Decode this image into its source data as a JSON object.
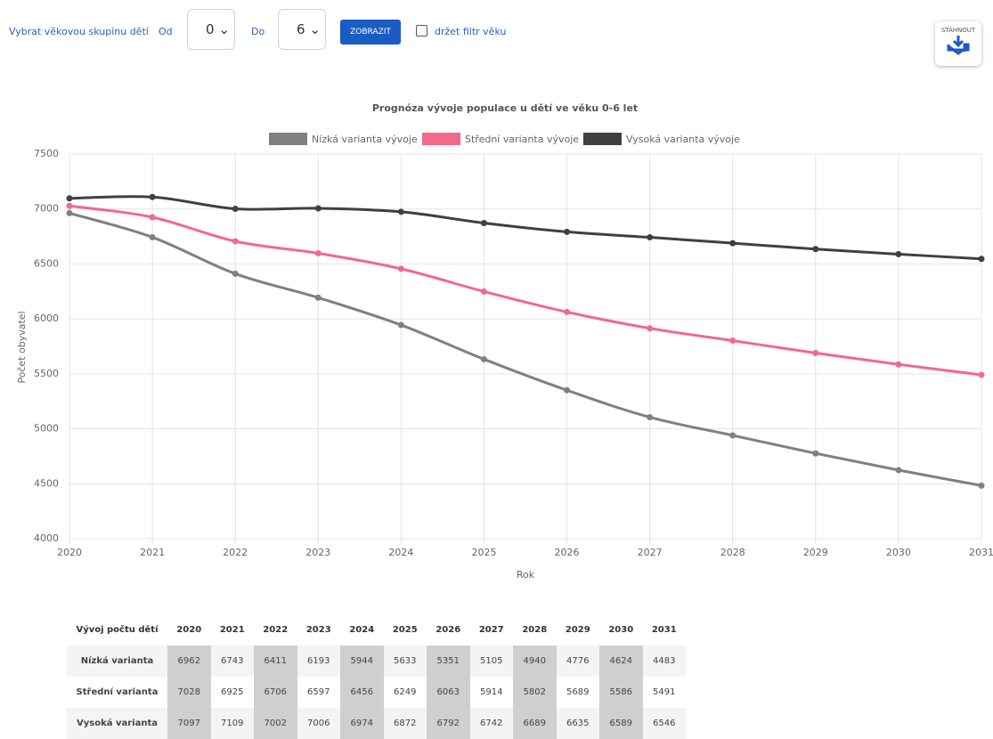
{
  "controls": {
    "age_label": "Vybrat věkovou skupinu dětí",
    "from_label": "Od",
    "from_value": "0",
    "to_label": "Do",
    "to_value": "6",
    "button": "ZOBRAZIT",
    "checkbox_label": "držet filtr věku",
    "download": "STÁHNOUT"
  },
  "chart_data": {
    "type": "line",
    "title": "Prognóza vývoje populace u dětí ve věku 0-6 let",
    "x_label": "Rok",
    "y_label": "Počet obyvatel",
    "x": [
      2020,
      2021,
      2022,
      2023,
      2024,
      2025,
      2026,
      2027,
      2028,
      2029,
      2030,
      2031
    ],
    "xlim": [
      2020,
      2031
    ],
    "xticks": [
      2020,
      2021,
      2022,
      2023,
      2024,
      2025,
      2026,
      2027,
      2028,
      2029,
      2030,
      2031
    ],
    "ylim": [
      4000,
      7500
    ],
    "yticks": [
      4000,
      4500,
      5000,
      5500,
      6000,
      6500,
      7000,
      7500
    ],
    "grid": true,
    "legend": "top",
    "series": [
      {
        "name": "Nízká varianta vývoje",
        "color": "#808080",
        "values": [
          6962,
          6743,
          6411,
          6193,
          5944,
          5633,
          5351,
          5105,
          4940,
          4776,
          4624,
          4483
        ]
      },
      {
        "name": "Střední varianta vývoje",
        "color": "#f2698a",
        "values": [
          7028,
          6925,
          6706,
          6597,
          6456,
          6249,
          6063,
          5914,
          5802,
          5689,
          5586,
          5491
        ]
      },
      {
        "name": "Vysoká varianta vývoje",
        "color": "#404040",
        "values": [
          7097,
          7109,
          7002,
          7006,
          6974,
          6872,
          6792,
          6742,
          6689,
          6635,
          6589,
          6546
        ]
      }
    ]
  },
  "table": {
    "corner": "Vývoj počtu dětí",
    "row_labels": [
      "Nízká varianta",
      "Střední varianta",
      "Vysoká varianta"
    ]
  }
}
